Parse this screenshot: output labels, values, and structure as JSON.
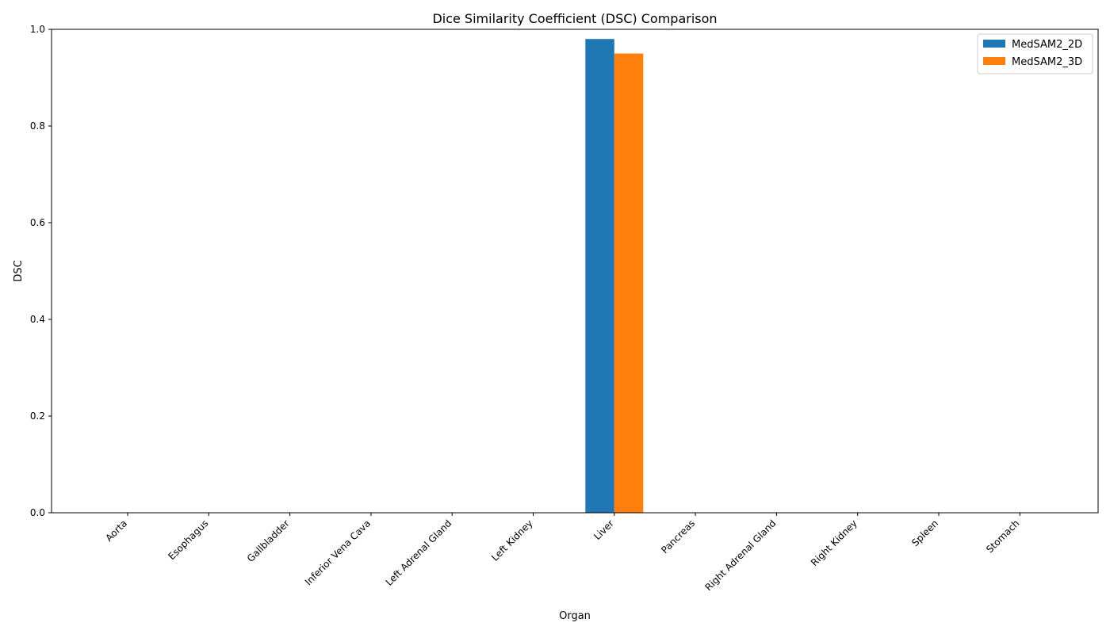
{
  "chart_data": {
    "type": "bar",
    "title": "Dice Similarity Coefficient (DSC) Comparison",
    "xlabel": "Organ",
    "ylabel": "DSC",
    "ylim": [
      0,
      1
    ],
    "yticks": [
      "0.0",
      "0.2",
      "0.4",
      "0.6",
      "0.8",
      "1.0"
    ],
    "categories": [
      "Aorta",
      "Esophagus",
      "Gallbladder",
      "Inferior Vena Cava",
      "Left Adrenal Gland",
      "Left Kidney",
      "Liver",
      "Pancreas",
      "Right Adrenal Gland",
      "Right Kidney",
      "Spleen",
      "Stomach"
    ],
    "series": [
      {
        "name": "MedSAM2_2D",
        "color": "#1f77b4",
        "values": [
          0,
          0,
          0,
          0,
          0,
          0,
          0.98,
          0,
          0,
          0,
          0,
          0
        ]
      },
      {
        "name": "MedSAM2_3D",
        "color": "#ff7f0e",
        "values": [
          0,
          0,
          0,
          0,
          0,
          0,
          0.95,
          0,
          0,
          0,
          0,
          0
        ]
      }
    ],
    "legend_position": "top-right",
    "grid": false
  }
}
